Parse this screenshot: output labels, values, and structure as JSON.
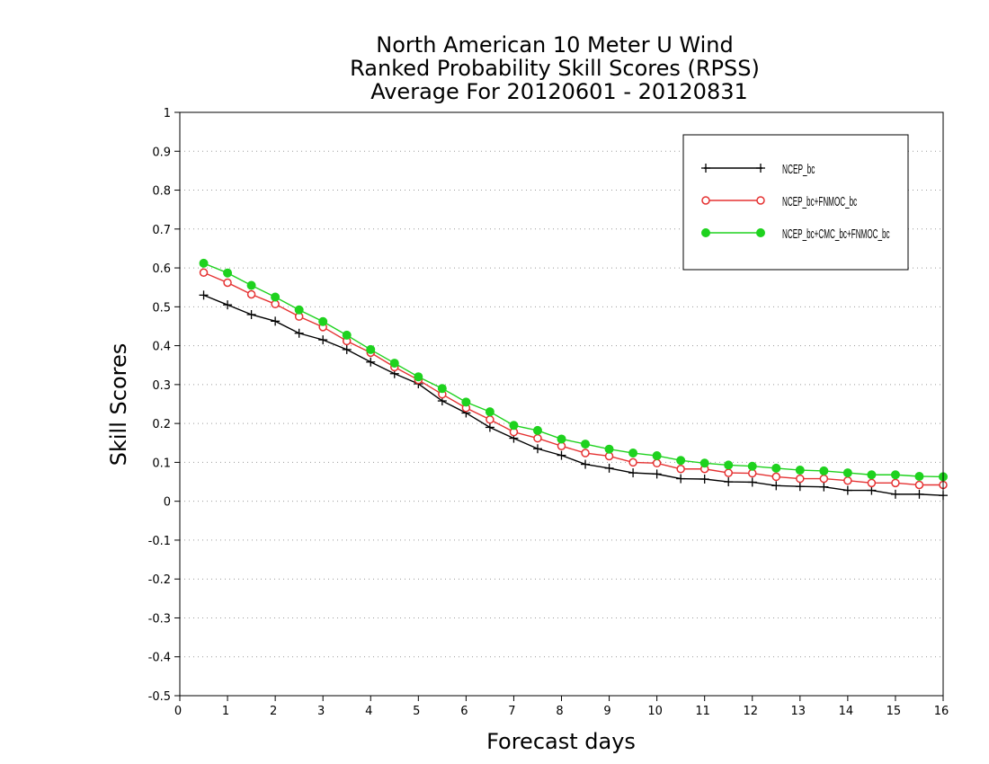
{
  "chart_data": {
    "type": "line",
    "title_lines": [
      "North American 10 Meter U Wind",
      "Ranked Probability Skill Scores (RPSS)",
      "Average For 20120601 - 20120831"
    ],
    "xlabel": "Forecast days",
    "ylabel": "Skill Scores",
    "xlim": [
      0,
      16
    ],
    "ylim": [
      -0.5,
      1
    ],
    "x_ticks": [
      "0",
      "1",
      "2",
      "3",
      "4",
      "5",
      "6",
      "7",
      "8",
      "9",
      "10",
      "11",
      "12",
      "13",
      "14",
      "15",
      "16"
    ],
    "y_ticks": [
      "1",
      "0.9",
      "0.8",
      "0.7",
      "0.6",
      "0.5",
      "0.4",
      "0.3",
      "0.2",
      "0.1",
      "0",
      "-0.1",
      "-0.2",
      "-0.3",
      "-0.4",
      "-0.5"
    ],
    "grid": "horizontal dotted",
    "legend_position": "top-right",
    "x": [
      0.5,
      1,
      1.5,
      2,
      2.5,
      3,
      3.5,
      4,
      4.5,
      5,
      5.5,
      6,
      6.5,
      7,
      7.5,
      8,
      8.5,
      9,
      9.5,
      10,
      10.5,
      11,
      11.5,
      12,
      12.5,
      13,
      13.5,
      14,
      14.5,
      15,
      15.5,
      16
    ],
    "series": [
      {
        "name": "NCEP_bc",
        "color": "#000000",
        "marker": "plus",
        "values": [
          0.53,
          0.505,
          0.48,
          0.463,
          0.432,
          0.415,
          0.39,
          0.358,
          0.328,
          0.302,
          0.258,
          0.227,
          0.19,
          0.162,
          0.135,
          0.118,
          0.095,
          0.085,
          0.073,
          0.07,
          0.058,
          0.057,
          0.05,
          0.049,
          0.04,
          0.038,
          0.037,
          0.028,
          0.028,
          0.018,
          0.018,
          0.015
        ]
      },
      {
        "name": "NCEP_bc+FNMOC_bc",
        "color": "#e53232",
        "marker": "open-circle",
        "values": [
          0.588,
          0.562,
          0.532,
          0.507,
          0.475,
          0.448,
          0.412,
          0.382,
          0.345,
          0.312,
          0.275,
          0.24,
          0.21,
          0.178,
          0.162,
          0.142,
          0.124,
          0.116,
          0.1,
          0.098,
          0.083,
          0.083,
          0.073,
          0.072,
          0.063,
          0.058,
          0.058,
          0.053,
          0.047,
          0.047,
          0.042,
          0.042
        ]
      },
      {
        "name": "NCEP_bc+CMC_bc+FNMOC_bc",
        "color": "#1ed21e",
        "marker": "filled-circle",
        "values": [
          0.612,
          0.587,
          0.555,
          0.525,
          0.492,
          0.462,
          0.427,
          0.39,
          0.355,
          0.32,
          0.29,
          0.255,
          0.23,
          0.195,
          0.182,
          0.16,
          0.147,
          0.134,
          0.124,
          0.117,
          0.105,
          0.098,
          0.093,
          0.09,
          0.085,
          0.08,
          0.078,
          0.073,
          0.068,
          0.068,
          0.064,
          0.063
        ]
      }
    ]
  }
}
